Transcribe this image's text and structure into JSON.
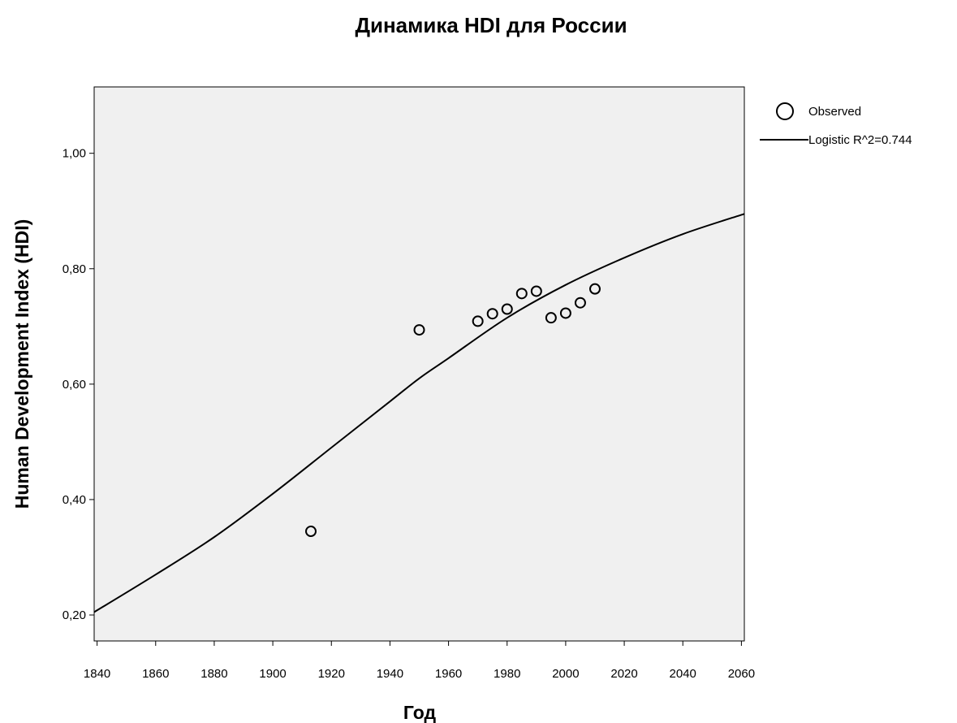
{
  "chart_data": {
    "type": "scatter",
    "title": "Динамика HDI для России",
    "xlabel": "Год",
    "ylabel": "Human Development Index (HDI)",
    "xlim": [
      1839,
      2061
    ],
    "ylim": [
      0.155,
      1.115
    ],
    "x_ticks": [
      1840,
      1860,
      1880,
      1900,
      1920,
      1940,
      1960,
      1980,
      2000,
      2020,
      2040,
      2060
    ],
    "x_tick_labels": [
      "1840",
      "1860",
      "1880",
      "1900",
      "1920",
      "1940",
      "1960",
      "1980",
      "2000",
      "2020",
      "2040",
      "2060"
    ],
    "y_ticks": [
      0.2,
      0.4,
      0.6,
      0.8,
      1.0
    ],
    "y_tick_labels": [
      "0,20",
      "0,40",
      "0,60",
      "0,80",
      "1,00"
    ],
    "grid": false,
    "legend_position": "top-right, outside plot",
    "series": [
      {
        "name": "Observed",
        "kind": "scatter",
        "marker": "open-circle",
        "points": [
          {
            "x": 1913,
            "y": 0.345
          },
          {
            "x": 1950,
            "y": 0.694
          },
          {
            "x": 1970,
            "y": 0.709
          },
          {
            "x": 1975,
            "y": 0.722
          },
          {
            "x": 1980,
            "y": 0.73
          },
          {
            "x": 1985,
            "y": 0.757
          },
          {
            "x": 1990,
            "y": 0.761
          },
          {
            "x": 1995,
            "y": 0.715
          },
          {
            "x": 2000,
            "y": 0.723
          },
          {
            "x": 2005,
            "y": 0.741
          },
          {
            "x": 2010,
            "y": 0.765
          }
        ]
      },
      {
        "name": "Logistic R^2=0.744",
        "kind": "line",
        "points": [
          {
            "x": 1839,
            "y": 0.205
          },
          {
            "x": 1860,
            "y": 0.27
          },
          {
            "x": 1880,
            "y": 0.335
          },
          {
            "x": 1900,
            "y": 0.41
          },
          {
            "x": 1920,
            "y": 0.49
          },
          {
            "x": 1940,
            "y": 0.57
          },
          {
            "x": 1950,
            "y": 0.61
          },
          {
            "x": 1960,
            "y": 0.645
          },
          {
            "x": 1980,
            "y": 0.715
          },
          {
            "x": 2000,
            "y": 0.772
          },
          {
            "x": 2020,
            "y": 0.819
          },
          {
            "x": 2040,
            "y": 0.86
          },
          {
            "x": 2061,
            "y": 0.895
          }
        ]
      }
    ]
  },
  "colors": {
    "plot_background": "#f0f0f0",
    "line": "#000000",
    "marker": "#000000",
    "page_background": "#ffffff"
  }
}
